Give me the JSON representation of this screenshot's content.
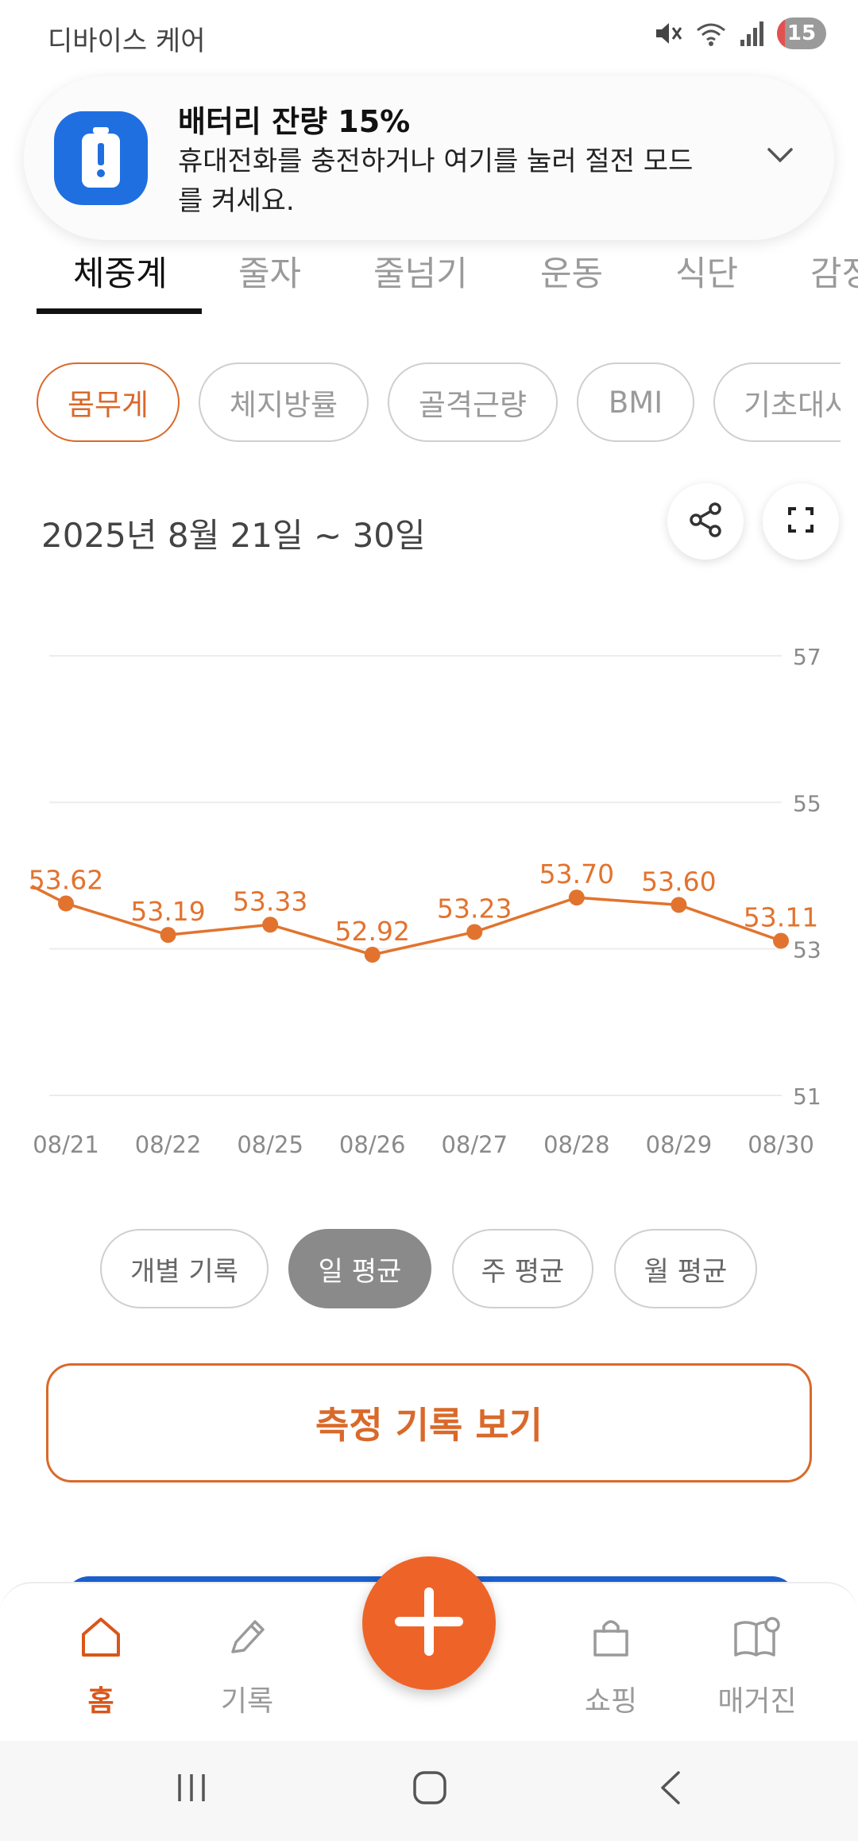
{
  "status_bar": {
    "app_label": "디바이스 케어",
    "battery_level": "15",
    "icons": [
      "mute-icon",
      "wifi-icon",
      "signal-icon",
      "battery-icon"
    ]
  },
  "notification": {
    "title": "배터리 잔량 15%",
    "body": "휴대전화를 충전하거나 여기를 눌러 절전 모드를 켜세요.",
    "icon": "battery-alert-icon"
  },
  "tabs": [
    {
      "label": "체중계",
      "active": true
    },
    {
      "label": "줄자",
      "active": false
    },
    {
      "label": "줄넘기",
      "active": false
    },
    {
      "label": "운동",
      "active": false
    },
    {
      "label": "식단",
      "active": false
    },
    {
      "label": "감정",
      "active": false
    }
  ],
  "metric_chips": [
    {
      "label": "몸무게",
      "active": true
    },
    {
      "label": "체지방률",
      "active": false
    },
    {
      "label": "골격근량",
      "active": false
    },
    {
      "label": "BMI",
      "active": false
    },
    {
      "label": "기초대사",
      "active": false
    }
  ],
  "date_range": "2025년 8월 21일 ~ 30일",
  "actions": {
    "share_icon": "share-icon",
    "fullscreen_icon": "fullscreen-icon"
  },
  "chart_data": {
    "type": "line",
    "categories": [
      "08/21",
      "08/22",
      "08/25",
      "08/26",
      "08/27",
      "08/28",
      "08/29",
      "08/30"
    ],
    "series": [
      {
        "values": [
          53.62,
          53.19,
          53.33,
          52.92,
          53.23,
          53.7,
          53.6,
          53.11
        ]
      }
    ],
    "data_labels": [
      "53.62",
      "53.19",
      "53.33",
      "52.92",
      "53.23",
      "53.70",
      "53.60",
      "53.11"
    ],
    "y_ticks": [
      "57",
      "55",
      "53",
      "51"
    ],
    "ylim": [
      51,
      57
    ],
    "grid": true,
    "y_axis_side": "right",
    "line_color": "#e2732e"
  },
  "aggregation": [
    {
      "label": "개별 기록",
      "active": false
    },
    {
      "label": "일 평균",
      "active": true
    },
    {
      "label": "주 평균",
      "active": false
    },
    {
      "label": "월 평균",
      "active": false
    }
  ],
  "records_button": "측정 기록 보기",
  "bottom_nav": {
    "items": [
      {
        "label": "홈",
        "icon": "home-icon",
        "active": true
      },
      {
        "label": "기록",
        "icon": "pencil-icon",
        "active": false
      },
      {
        "label": "쇼핑",
        "icon": "shopping-bag-icon",
        "active": false
      },
      {
        "label": "매거진",
        "icon": "magazine-icon",
        "active": false
      }
    ],
    "fab_icon": "plus-icon"
  },
  "system_nav": {
    "icons": [
      "recent-apps-icon",
      "home-button-icon",
      "back-icon"
    ]
  },
  "colors": {
    "accent": "#d9692a",
    "fab": "#ee6428",
    "notif_icon_bg": "#1f6fe0"
  }
}
